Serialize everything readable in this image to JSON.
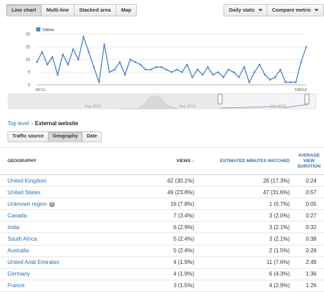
{
  "toolbar": {
    "chart_types": [
      "Line chart",
      "Multi-line",
      "Stacked area",
      "Map"
    ],
    "active_chart_type": 0,
    "interval_label": "Daily stats",
    "compare_label": "Compare metric"
  },
  "chart_data": {
    "type": "line",
    "series": [
      {
        "name": "Views",
        "values": [
          9,
          13,
          8,
          11,
          4,
          12,
          8,
          14,
          10,
          19,
          13,
          7,
          1,
          16,
          5,
          6,
          9,
          4,
          10,
          9,
          8,
          6,
          6,
          7,
          7,
          6,
          5,
          6,
          5,
          8,
          3,
          6,
          4,
          7,
          4,
          5,
          3,
          6,
          5,
          3,
          7,
          1,
          5,
          8,
          4,
          2,
          3,
          6,
          1,
          1,
          1,
          9,
          15
        ]
      }
    ],
    "y_ticks": [
      "0",
      "5",
      "10",
      "15",
      "20"
    ],
    "ylim": [
      0,
      20
    ],
    "x_start_label": "09/13",
    "x_end_label": "10/8/13",
    "nav_labels": [
      "Aug 2013",
      "Sep 2013",
      "Oct 2013"
    ],
    "line_color": "#4d86c6"
  },
  "breadcrumb": {
    "root": "Top level",
    "separator": "›",
    "current": "External website"
  },
  "tabs": [
    "Traffic source",
    "Geography",
    "Date"
  ],
  "active_tab": 1,
  "table": {
    "headers": {
      "geography": "GEOGRAPHY",
      "views": "VIEWS ↓",
      "minutes": "ESTIMATED MINUTES WATCHED",
      "avg": "AVERAGE VIEW DURATION"
    },
    "rows": [
      {
        "geo": "United Kingdom",
        "views": "62 (30.1%)",
        "minutes": "26 (17.3%)",
        "avg": "0:24"
      },
      {
        "geo": "United States",
        "views": "49 (23.8%)",
        "minutes": "47 (31.6%)",
        "avg": "0:57"
      },
      {
        "geo": "Unknown region",
        "views": "16 (7.8%)",
        "minutes": "1 (0.7%)",
        "avg": "0:05",
        "help": "?"
      },
      {
        "geo": "Canada",
        "views": "7 (3.4%)",
        "minutes": "3 (2.0%)",
        "avg": "0:27"
      },
      {
        "geo": "India",
        "views": "6 (2.9%)",
        "minutes": "3 (2.1%)",
        "avg": "0:32"
      },
      {
        "geo": "South Africa",
        "views": "5 (2.4%)",
        "minutes": "3 (2.1%)",
        "avg": "0:38"
      },
      {
        "geo": "Australia",
        "views": "5 (2.4%)",
        "minutes": "2 (1.5%)",
        "avg": "0:26"
      },
      {
        "geo": "United Arab Emirates",
        "views": "4 (1.9%)",
        "minutes": "11 (7.6%)",
        "avg": "2:49"
      },
      {
        "geo": "Germany",
        "views": "4 (1.9%)",
        "minutes": "6 (4.3%)",
        "avg": "1:36"
      },
      {
        "geo": "France",
        "views": "3 (1.5%)",
        "minutes": "4 (2.9%)",
        "avg": "1:26"
      }
    ]
  }
}
